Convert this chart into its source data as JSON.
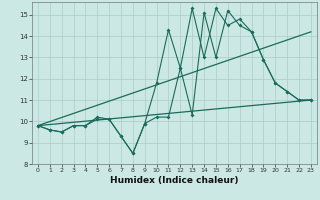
{
  "xlabel": "Humidex (Indice chaleur)",
  "xlim": [
    -0.5,
    23.5
  ],
  "ylim": [
    8,
    15.6
  ],
  "yticks": [
    8,
    9,
    10,
    11,
    12,
    13,
    14,
    15
  ],
  "xticks": [
    0,
    1,
    2,
    3,
    4,
    5,
    6,
    7,
    8,
    9,
    10,
    11,
    12,
    13,
    14,
    15,
    16,
    17,
    18,
    19,
    20,
    21,
    22,
    23
  ],
  "bg_color": "#cce8e4",
  "grid_color": "#aaccc8",
  "line_color": "#1a6b5a",
  "line1_x": [
    0,
    1,
    2,
    3,
    4,
    5,
    6,
    7,
    8,
    9,
    10,
    11,
    12,
    13,
    14,
    15,
    16,
    17,
    18,
    19,
    20,
    21,
    22,
    23
  ],
  "line1_y": [
    9.8,
    9.6,
    9.5,
    9.8,
    9.8,
    10.2,
    10.1,
    9.3,
    8.5,
    9.9,
    10.2,
    10.2,
    12.5,
    10.3,
    15.1,
    13.0,
    15.2,
    14.5,
    14.2,
    12.9,
    11.8,
    11.4,
    11.0,
    11.0
  ],
  "line2_x": [
    0,
    1,
    2,
    3,
    4,
    5,
    6,
    7,
    8,
    9,
    10,
    11,
    12,
    13,
    14,
    15,
    16,
    17,
    18,
    19,
    20,
    21,
    22,
    23
  ],
  "line2_y": [
    9.8,
    9.6,
    9.5,
    9.8,
    9.8,
    10.1,
    10.1,
    9.3,
    8.5,
    9.9,
    11.8,
    14.3,
    12.5,
    15.3,
    13.0,
    15.3,
    14.5,
    14.8,
    14.2,
    12.9,
    11.8,
    11.4,
    11.0,
    11.0
  ],
  "trend1_x": [
    0,
    23
  ],
  "trend1_y": [
    9.8,
    14.2
  ],
  "trend2_x": [
    0,
    23
  ],
  "trend2_y": [
    9.8,
    11.0
  ]
}
